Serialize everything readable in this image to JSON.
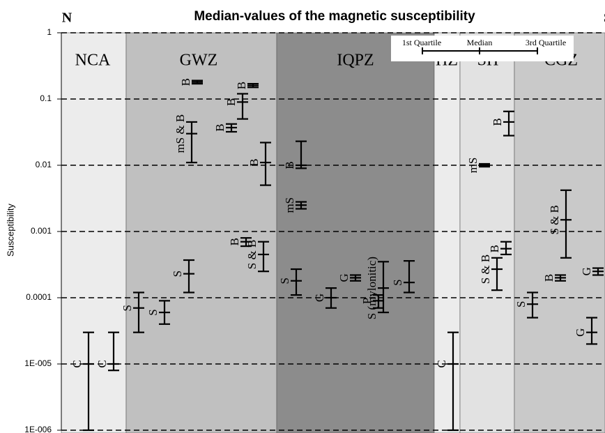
{
  "chart_data": {
    "type": "quartile",
    "title": "Median-values of the magnetic susceptibility",
    "left_label": "N",
    "right_label": "S",
    "y_label": "Susceptibility",
    "log_scale": true,
    "grid": true,
    "ylim": [
      1e-06,
      1
    ],
    "yticks": [
      1,
      0.1,
      0.01,
      0.001,
      0.0001,
      {
        "value": 1e-05,
        "label": "1E-005"
      },
      {
        "value": 1e-06,
        "label": "1E-006"
      }
    ],
    "legend": [
      "1st Quartile",
      "Median",
      "3rd Quartile"
    ],
    "zones": [
      {
        "name": "NCA",
        "color": "#ececec",
        "samples": [
          {
            "name": "C",
            "q1": 1e-06,
            "median": 1e-05,
            "q3": 3e-05
          },
          {
            "name": "C",
            "q1": 8e-06,
            "median": 1e-05,
            "q3": 3e-05
          }
        ]
      },
      {
        "name": "GWZ",
        "color": "#c0c0c0",
        "samples": [
          {
            "name": "S",
            "q1": 3e-05,
            "median": 7e-05,
            "q3": 0.00012
          },
          {
            "name": "S",
            "q1": 4e-05,
            "median": 6e-05,
            "q3": 9e-05
          },
          {
            "name": "S",
            "q1": 0.00012,
            "median": 0.00023,
            "q3": 0.00037
          },
          {
            "name": "mS & B",
            "q1": 0.011,
            "median": 0.03,
            "q3": 0.045
          },
          {
            "name": "B",
            "q1": 0.17,
            "median": 0.18,
            "q3": 0.19
          },
          {
            "name": "B",
            "q1": 0.032,
            "median": 0.037,
            "q3": 0.042
          },
          {
            "name": "B",
            "q1": 0.05,
            "median": 0.09,
            "q3": 0.12
          },
          {
            "name": "B",
            "q1": 0.15,
            "median": 0.16,
            "q3": 0.17
          },
          {
            "name": "B",
            "q1": 0.0006,
            "median": 0.0007,
            "q3": 0.0008
          },
          {
            "name": "S & B",
            "q1": 0.00025,
            "median": 0.00045,
            "q3": 0.0007
          },
          {
            "name": "B",
            "q1": 0.005,
            "median": 0.011,
            "q3": 0.022
          }
        ]
      },
      {
        "name": "IQPZ",
        "color": "#8c8c8c",
        "samples": [
          {
            "name": "B",
            "q1": 0.009,
            "median": 0.01,
            "q3": 0.023
          },
          {
            "name": "mS",
            "q1": 0.0022,
            "median": 0.0025,
            "q3": 0.0028
          },
          {
            "name": "S",
            "q1": 0.00011,
            "median": 0.00018,
            "q3": 0.00027
          },
          {
            "name": "G",
            "q1": 7e-05,
            "median": 0.0001,
            "q3": 0.00014
          },
          {
            "name": "G",
            "q1": 0.00018,
            "median": 0.0002,
            "q3": 0.00022
          },
          {
            "name": "P",
            "q1": 7e-05,
            "median": 9e-05,
            "q3": 0.00011
          },
          {
            "name": "S (mylonitic)",
            "q1": 6e-05,
            "median": 0.00014,
            "q3": 0.00035
          },
          {
            "name": "S",
            "q1": 0.00012,
            "median": 0.00017,
            "q3": 0.00036
          }
        ]
      },
      {
        "name": "HZ",
        "color": "#ececec",
        "samples": [
          {
            "name": "C",
            "q1": 1e-06,
            "median": 1e-05,
            "q3": 3e-05
          }
        ]
      },
      {
        "name": "SH",
        "color": "#e2e2e2",
        "samples": [
          {
            "name": "mS",
            "q1": 0.0095,
            "median": 0.01,
            "q3": 0.0105
          },
          {
            "name": "B",
            "q1": 0.028,
            "median": 0.045,
            "q3": 0.065
          },
          {
            "name": "S & B",
            "q1": 0.00013,
            "median": 0.00027,
            "q3": 0.0004
          },
          {
            "name": "B",
            "q1": 0.00045,
            "median": 0.00055,
            "q3": 0.0007
          }
        ]
      },
      {
        "name": "CGZ",
        "color": "#c9c9c9",
        "samples": [
          {
            "name": "S",
            "q1": 5e-05,
            "median": 8e-05,
            "q3": 0.00012
          },
          {
            "name": "S & B",
            "q1": 0.0004,
            "median": 0.0015,
            "q3": 0.0042
          },
          {
            "name": "B",
            "q1": 0.00018,
            "median": 0.0002,
            "q3": 0.00022
          },
          {
            "name": "G",
            "q1": 0.00022,
            "median": 0.00025,
            "q3": 0.00028
          },
          {
            "name": "G",
            "q1": 2e-05,
            "median": 3e-05,
            "q3": 5e-05
          }
        ]
      }
    ]
  }
}
